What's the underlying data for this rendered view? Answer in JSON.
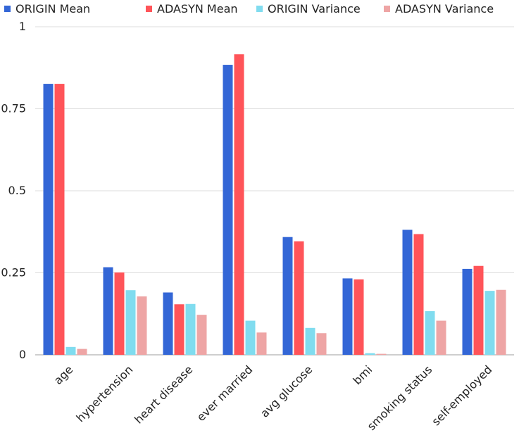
{
  "chart_data": {
    "type": "bar",
    "title": "",
    "xlabel": "",
    "ylabel": "",
    "ylim": [
      0,
      1
    ],
    "yticks": [
      0,
      0.25,
      0.5,
      0.75,
      1
    ],
    "ytick_labels": [
      "0",
      "0.25",
      "0.5",
      "0.75",
      "1"
    ],
    "grid": true,
    "legend_position": "top",
    "categories": [
      "age",
      "hypertension",
      "heart disease",
      "ever married",
      "avg glucose",
      "bmi",
      "smoking status",
      "self-employed"
    ],
    "series": [
      {
        "name": "ORIGIN Mean",
        "color": "#3366d6",
        "values": [
          0.826,
          0.267,
          0.19,
          0.884,
          0.359,
          0.233,
          0.381,
          0.262
        ]
      },
      {
        "name": "ADASYN Mean",
        "color": "#ff5459",
        "values": [
          0.826,
          0.251,
          0.154,
          0.916,
          0.346,
          0.23,
          0.368,
          0.271
        ]
      },
      {
        "name": "ORIGIN Variance",
        "color": "#80dcef",
        "values": [
          0.024,
          0.197,
          0.155,
          0.104,
          0.082,
          0.005,
          0.133,
          0.195
        ]
      },
      {
        "name": "ADASYN Variance",
        "color": "#eea5a5",
        "values": [
          0.018,
          0.178,
          0.122,
          0.068,
          0.066,
          0.003,
          0.104,
          0.198
        ]
      }
    ]
  }
}
